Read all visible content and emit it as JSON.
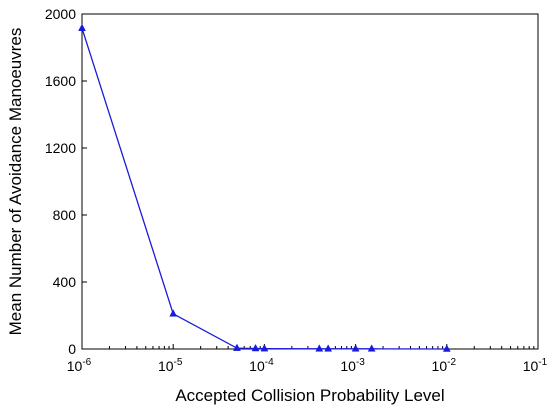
{
  "chart_data": {
    "type": "line",
    "title": "",
    "xlabel": "Accepted Collision Probability Level",
    "ylabel": "Mean Number of Avoidance Manoeuvres",
    "xscale": "log",
    "xlim": [
      1e-06,
      0.1
    ],
    "ylim": [
      0,
      2000
    ],
    "grid": false,
    "legend": "none",
    "x_ticks": [
      {
        "base": "10",
        "exp": "-6",
        "value": 1e-06
      },
      {
        "base": "10",
        "exp": "-5",
        "value": 1e-05
      },
      {
        "base": "10",
        "exp": "-4",
        "value": 0.0001
      },
      {
        "base": "10",
        "exp": "-3",
        "value": 0.001
      },
      {
        "base": "10",
        "exp": "-2",
        "value": 0.01
      },
      {
        "base": "10",
        "exp": "-1",
        "value": 0.1
      }
    ],
    "y_ticks": [
      0,
      400,
      800,
      1200,
      1600,
      2000
    ],
    "series": [
      {
        "color": "#1a1adb",
        "marker": "triangle",
        "x": [
          1e-06,
          1e-05,
          5e-05,
          8e-05,
          0.0001,
          0.0004,
          0.0005,
          0.001,
          0.0015,
          0.01
        ],
        "y": [
          1915,
          210,
          5,
          3,
          2,
          1,
          1,
          1,
          1,
          0
        ]
      }
    ]
  }
}
